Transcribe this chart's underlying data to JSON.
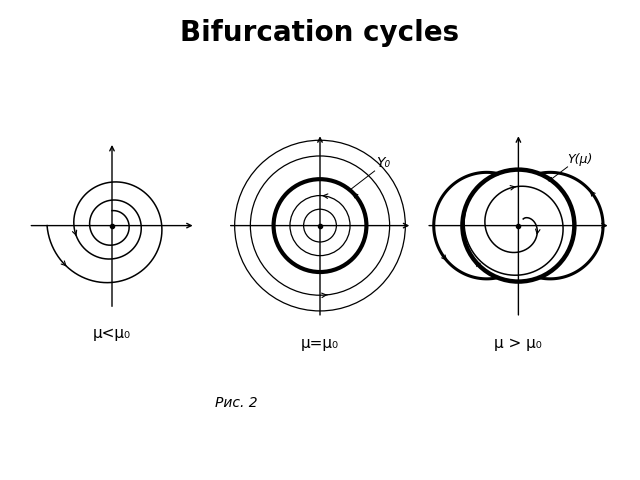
{
  "title": "Bifurcation cycles",
  "title_fontsize": 20,
  "title_fontweight": "bold",
  "bg_color": "#ffffff",
  "caption": "Рис. 2",
  "labels": [
    "μ<μ₀",
    "μ=μ₀",
    "μ > μ₀"
  ],
  "label_y0": "Y₀",
  "label_ymu": "Y(μ)"
}
